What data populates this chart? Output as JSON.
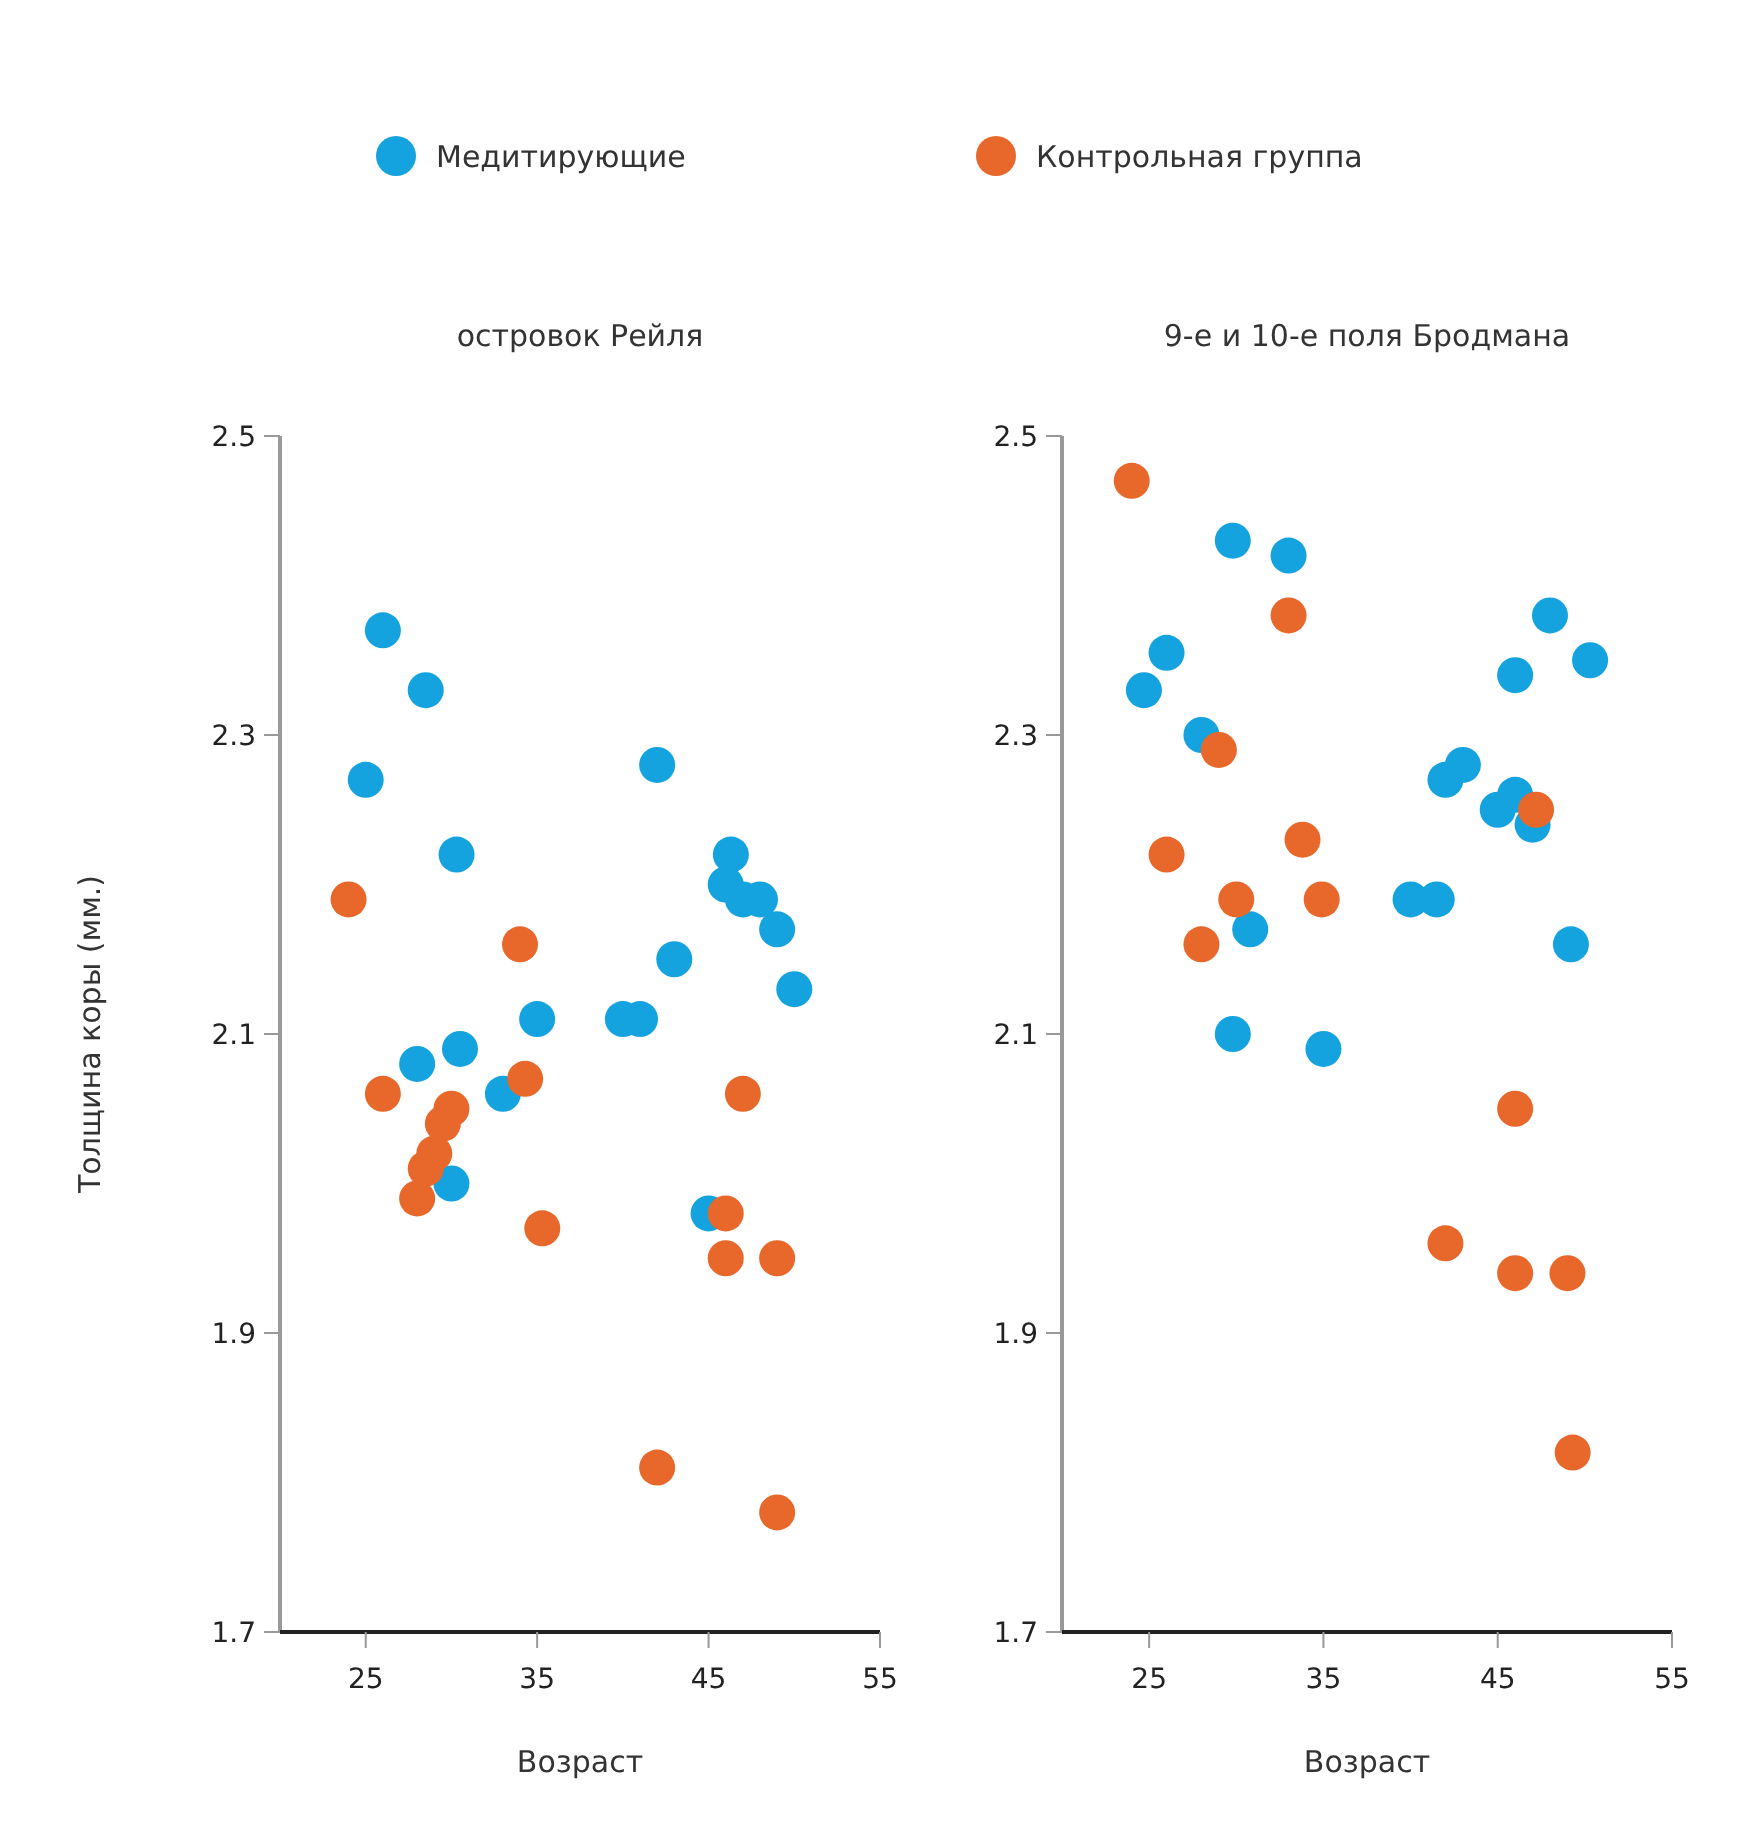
{
  "chart_data": [
    {
      "type": "scatter",
      "title": "островок Рейля",
      "xlabel": "Возраст",
      "ylabel": "Толщина коры (мм.)",
      "xlim": [
        20,
        55
      ],
      "xticks": [
        25,
        35,
        45,
        55
      ],
      "ylim": [
        1.7,
        2.5
      ],
      "yticks": [
        1.7,
        1.9,
        2.1,
        2.3,
        2.5
      ],
      "legend": "top",
      "marker": "circle",
      "grid": false,
      "series": [
        {
          "name": "Медитирующие",
          "color": "#14a3de",
          "x": [
            26,
            28.5,
            25,
            30.3,
            42,
            46.3,
            46,
            47,
            48,
            49,
            43,
            50,
            40,
            41,
            35,
            30.5,
            28,
            33,
            30,
            45
          ],
          "values": [
            2.37,
            2.33,
            2.27,
            2.22,
            2.28,
            2.22,
            2.2,
            2.19,
            2.19,
            2.17,
            2.15,
            2.13,
            2.11,
            2.11,
            2.11,
            2.09,
            2.08,
            2.06,
            2.0,
            1.98
          ]
        },
        {
          "name": "Контрольная группа",
          "color": "#e8672a",
          "x": [
            24,
            34,
            26,
            34.3,
            30,
            29.5,
            29,
            28.5,
            28,
            35.3,
            47,
            46,
            46,
            49,
            42,
            49
          ],
          "values": [
            2.19,
            2.16,
            2.06,
            2.07,
            2.05,
            2.04,
            2.02,
            2.01,
            1.99,
            1.97,
            2.06,
            1.98,
            1.95,
            1.95,
            1.81,
            1.78
          ]
        }
      ]
    },
    {
      "type": "scatter",
      "title": "9-е и 10-е поля Бродмана",
      "xlabel": "Возраст",
      "xlim": [
        20,
        55
      ],
      "xticks": [
        25,
        35,
        45,
        55
      ],
      "ylim": [
        1.7,
        2.5
      ],
      "yticks": [
        1.7,
        1.9,
        2.1,
        2.3,
        2.5
      ],
      "marker": "circle",
      "grid": false,
      "series": [
        {
          "color": "#14a3de",
          "x": [
            29.8,
            33,
            26,
            24.7,
            28,
            48,
            46,
            50.3,
            42,
            43,
            46,
            45,
            47,
            40,
            41.5,
            30.8,
            49.2,
            29.8,
            35
          ],
          "values": [
            2.43,
            2.42,
            2.355,
            2.33,
            2.3,
            2.38,
            2.34,
            2.35,
            2.27,
            2.28,
            2.26,
            2.25,
            2.24,
            2.19,
            2.19,
            2.17,
            2.16,
            2.1,
            2.09
          ]
        },
        {
          "color": "#e8672a",
          "x": [
            24,
            33,
            29,
            26,
            33.8,
            34.9,
            30,
            28,
            47.2,
            46,
            42,
            46,
            49,
            49.3
          ],
          "values": [
            2.47,
            2.38,
            2.29,
            2.22,
            2.23,
            2.19,
            2.19,
            2.16,
            2.25,
            2.05,
            1.96,
            1.94,
            1.94,
            1.82
          ]
        }
      ]
    }
  ]
}
